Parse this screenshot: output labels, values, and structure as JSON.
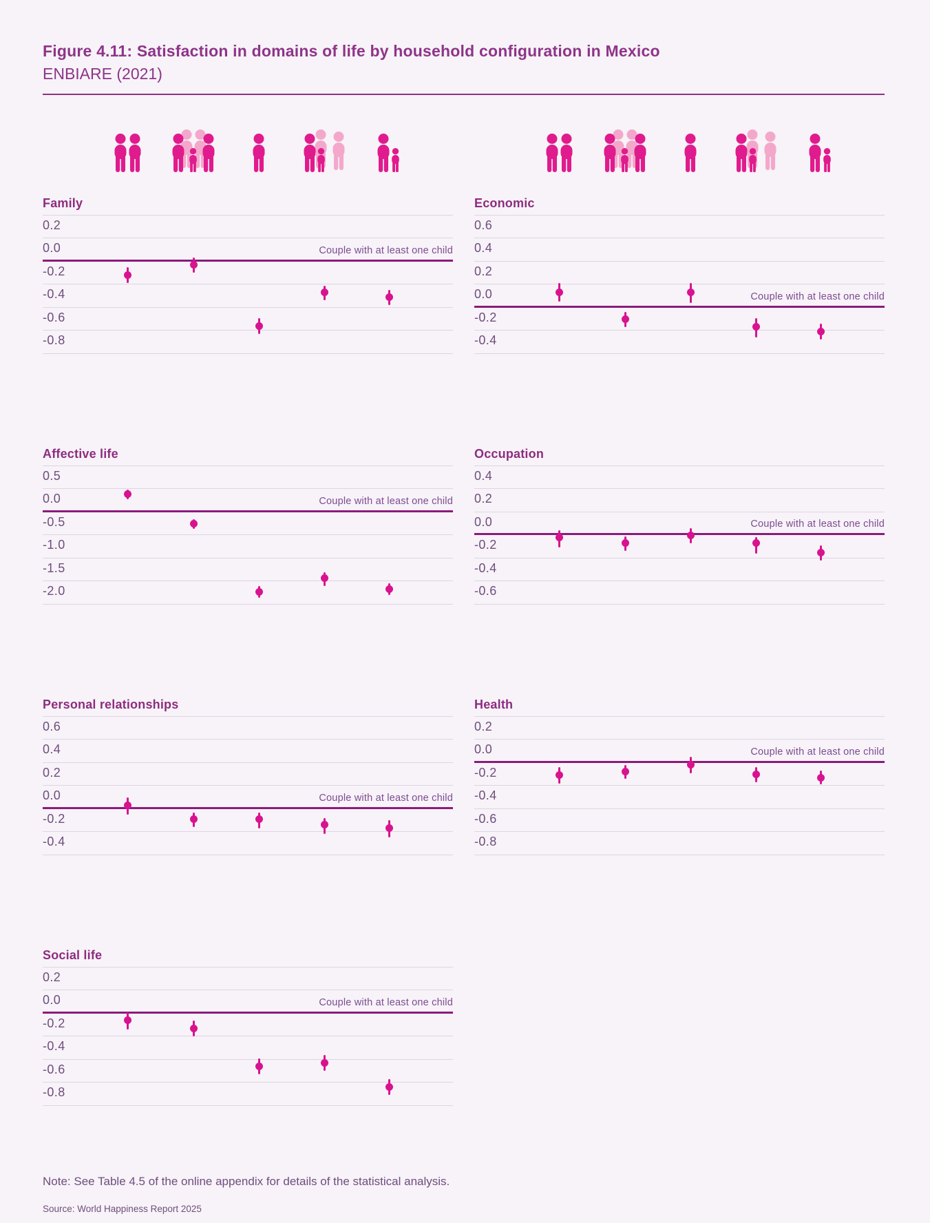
{
  "header": {
    "title": "Figure 4.11: Satisfaction in domains of life by household configuration in Mexico",
    "subtitle": "ENBIARE (2021)"
  },
  "reference_label": "Couple with at least one child",
  "household_categories": [
    "couple-without-children",
    "extended-family-with-children",
    "single-person",
    "couple-with-children-and-others",
    "single-parent"
  ],
  "colors": {
    "background": "#f7f3f8",
    "title_purple": "#8e3489",
    "section_title_purple": "#8d2c7f",
    "tick_text": "#6f4d7d",
    "reference_text": "#7d4b91",
    "gridline": "#ded5e3",
    "zero_line": "#8c1a7b",
    "point_magenta": "#d8138f",
    "icon_magenta": "#e01b8d",
    "icon_light_pink": "#f3a8cb"
  },
  "chart_data": [
    {
      "type": "scatter",
      "title": "Family",
      "band": 0,
      "column": "left",
      "ytick_labels": [
        "0.2",
        "0.0",
        "-0.2",
        "-0.4",
        "-0.6",
        "-0.8"
      ],
      "yticks": [
        0.2,
        0.0,
        -0.2,
        -0.4,
        -0.6,
        -0.8
      ],
      "step": 0.2,
      "ylim": [
        -0.8,
        0.4
      ],
      "grid": true,
      "xlabel": "",
      "ylabel": "",
      "reference_label": "Couple with at least one child",
      "categories": [
        "couple-without-children",
        "extended-family-with-children",
        "single-person",
        "couple-with-children-and-others",
        "single-parent"
      ],
      "values": [
        -0.12,
        -0.03,
        -0.56,
        -0.27,
        -0.31
      ],
      "ci_low": [
        -0.19,
        -0.1,
        -0.63,
        -0.34,
        -0.38
      ],
      "ci_high": [
        -0.05,
        0.03,
        -0.49,
        -0.21,
        -0.25
      ]
    },
    {
      "type": "scatter",
      "title": "Economic",
      "band": 0,
      "column": "right",
      "ytick_labels": [
        "0.6",
        "0.4",
        "0.2",
        "0.0",
        "-0.2",
        "-0.4"
      ],
      "yticks": [
        0.6,
        0.4,
        0.2,
        0.0,
        -0.2,
        -0.4
      ],
      "step": 0.2,
      "ylim": [
        -0.4,
        0.8
      ],
      "grid": true,
      "xlabel": "",
      "ylabel": "",
      "reference_label": "Couple with at least one child",
      "categories": [
        "couple-without-children",
        "extended-family-with-children",
        "single-person",
        "couple-with-children-and-others",
        "single-parent"
      ],
      "values": [
        0.13,
        -0.1,
        0.13,
        -0.17,
        -0.21
      ],
      "ci_low": [
        0.05,
        -0.17,
        0.04,
        -0.26,
        -0.28
      ],
      "ci_high": [
        0.21,
        -0.04,
        0.21,
        -0.09,
        -0.14
      ]
    },
    {
      "type": "scatter",
      "title": "Affective life",
      "band": 1,
      "column": "left",
      "ytick_labels": [
        "0.5",
        "0.0",
        "-0.5",
        "-1.0",
        "-1.5",
        "-2.0"
      ],
      "yticks": [
        0.5,
        0.0,
        -0.5,
        -1.0,
        -1.5,
        -2.0
      ],
      "step": 0.5,
      "ylim": [
        -2.0,
        1.0
      ],
      "grid": true,
      "xlabel": "",
      "ylabel": "",
      "reference_label": "Couple with at least one child",
      "categories": [
        "couple-without-children",
        "extended-family-with-children",
        "single-person",
        "couple-with-children-and-others",
        "single-parent"
      ],
      "values": [
        0.39,
        -0.25,
        -1.73,
        -1.44,
        -1.67
      ],
      "ci_low": [
        0.27,
        -0.36,
        -1.86,
        -1.61,
        -1.8
      ],
      "ci_high": [
        0.49,
        -0.16,
        -1.61,
        -1.3,
        -1.54
      ]
    },
    {
      "type": "scatter",
      "title": "Occupation",
      "band": 1,
      "column": "right",
      "ytick_labels": [
        "0.4",
        "0.2",
        "0.0",
        "-0.2",
        "-0.4",
        "-0.6"
      ],
      "yticks": [
        0.4,
        0.2,
        0.0,
        -0.2,
        -0.4,
        -0.6
      ],
      "step": 0.2,
      "ylim": [
        -0.6,
        0.6
      ],
      "grid": true,
      "xlabel": "",
      "ylabel": "",
      "reference_label": "Couple with at least one child",
      "categories": [
        "couple-without-children",
        "extended-family-with-children",
        "single-person",
        "couple-with-children-and-others",
        "single-parent"
      ],
      "values": [
        -0.02,
        -0.07,
        0.0,
        -0.07,
        -0.15
      ],
      "ci_low": [
        -0.11,
        -0.14,
        -0.07,
        -0.16,
        -0.22
      ],
      "ci_high": [
        0.04,
        -0.01,
        0.06,
        -0.02,
        -0.09
      ]
    },
    {
      "type": "scatter",
      "title": "Personal relationships",
      "band": 2,
      "column": "left",
      "ytick_labels": [
        "0.6",
        "0.4",
        "0.2",
        "0.0",
        "-0.2",
        "-0.4"
      ],
      "yticks": [
        0.6,
        0.4,
        0.2,
        0.0,
        -0.2,
        -0.4
      ],
      "step": 0.2,
      "ylim": [
        -0.4,
        0.8
      ],
      "grid": true,
      "xlabel": "",
      "ylabel": "",
      "reference_label": "Couple with at least one child",
      "categories": [
        "couple-without-children",
        "extended-family-with-children",
        "single-person",
        "couple-with-children-and-others",
        "single-parent"
      ],
      "values": [
        0.03,
        -0.09,
        -0.09,
        -0.14,
        -0.17
      ],
      "ci_low": [
        -0.05,
        -0.16,
        -0.17,
        -0.22,
        -0.25
      ],
      "ci_high": [
        0.1,
        -0.03,
        -0.03,
        -0.08,
        -0.1
      ]
    },
    {
      "type": "scatter",
      "title": "Health",
      "band": 2,
      "column": "right",
      "ytick_labels": [
        "0.2",
        "0.0",
        "-0.2",
        "-0.4",
        "-0.6",
        "-0.8"
      ],
      "yticks": [
        0.2,
        0.0,
        -0.2,
        -0.4,
        -0.6,
        -0.8
      ],
      "step": 0.2,
      "ylim": [
        -0.8,
        0.4
      ],
      "grid": true,
      "xlabel": "",
      "ylabel": "",
      "reference_label": "Couple with at least one child",
      "categories": [
        "couple-without-children",
        "extended-family-with-children",
        "single-person",
        "couple-with-children-and-others",
        "single-parent"
      ],
      "values": [
        -0.11,
        -0.08,
        -0.02,
        -0.1,
        -0.13
      ],
      "ci_low": [
        -0.18,
        -0.14,
        -0.09,
        -0.17,
        -0.19
      ],
      "ci_high": [
        -0.04,
        -0.02,
        0.05,
        -0.04,
        -0.07
      ]
    },
    {
      "type": "scatter",
      "title": "Social life",
      "band": 3,
      "column": "left",
      "ytick_labels": [
        "0.2",
        "0.0",
        "-0.2",
        "-0.4",
        "-0.6",
        "-0.8"
      ],
      "yticks": [
        0.2,
        0.0,
        -0.2,
        -0.4,
        -0.6,
        -0.8
      ],
      "step": 0.2,
      "ylim": [
        -0.8,
        0.4
      ],
      "grid": true,
      "xlabel": "",
      "ylabel": "",
      "reference_label": "Couple with at least one child",
      "categories": [
        "couple-without-children",
        "extended-family-with-children",
        "single-person",
        "couple-with-children-and-others",
        "single-parent"
      ],
      "values": [
        -0.06,
        -0.13,
        -0.46,
        -0.43,
        -0.64
      ],
      "ci_low": [
        -0.14,
        -0.2,
        -0.53,
        -0.5,
        -0.71
      ],
      "ci_high": [
        0.01,
        -0.06,
        -0.39,
        -0.36,
        -0.57
      ]
    }
  ],
  "footer": {
    "note": "Note: See Table 4.5 of the online appendix for details of the statistical analysis.",
    "source": "Source: World Happiness Report 2025"
  }
}
